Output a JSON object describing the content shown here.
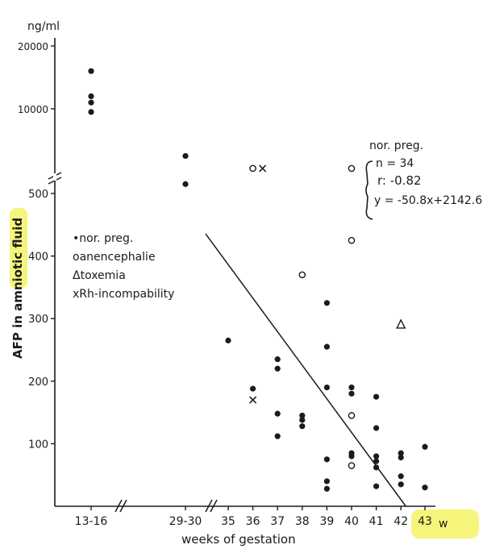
{
  "chart_data": {
    "type": "scatter",
    "ylabel": "AFP in amniotic fluid",
    "y_unit": "ng/ml",
    "xlabel": "weeks of gestation",
    "x_unit_label": "w",
    "x_ticks": [
      "13-16",
      "29-30",
      "35",
      "36",
      "37",
      "38",
      "39",
      "40",
      "41",
      "42",
      "43"
    ],
    "y_ticks_lower": [
      "100",
      "200",
      "300",
      "400",
      "500"
    ],
    "y_ticks_upper": [
      "10000",
      "20000"
    ],
    "ylim_lower": [
      0,
      500
    ],
    "ylim_upper": [
      10000,
      20000
    ],
    "grid": false,
    "legend": {
      "position": "left",
      "entries": [
        {
          "symbol": "•",
          "label": "nor. preg."
        },
        {
          "symbol": "o",
          "label": "anencephalie"
        },
        {
          "symbol": "Δ",
          "label": "toxemia"
        },
        {
          "symbol": "x",
          "label": "Rh-incompability"
        }
      ]
    },
    "stats": {
      "heading": "nor. preg.",
      "lines": [
        "n = 34",
        "r: -0.82",
        "y = -50.8x+2142.6"
      ]
    },
    "regression": {
      "slope": -50.8,
      "intercept": 2142.6,
      "x_range": [
        35,
        42.2
      ]
    },
    "series": [
      {
        "name": "nor. preg.",
        "marker": "dot",
        "points": [
          [
            "13-16",
            16000
          ],
          [
            "13-16",
            12000
          ],
          [
            "13-16",
            11000
          ],
          [
            "13-16",
            9500
          ],
          [
            "29-30",
            560
          ],
          [
            "29-30",
            515
          ],
          [
            35,
            265
          ],
          [
            36,
            188
          ],
          [
            37,
            235
          ],
          [
            37,
            220
          ],
          [
            37,
            148
          ],
          [
            37,
            112
          ],
          [
            38,
            145
          ],
          [
            38,
            138
          ],
          [
            38,
            128
          ],
          [
            39,
            325
          ],
          [
            39,
            255
          ],
          [
            39,
            190
          ],
          [
            39,
            75
          ],
          [
            39,
            40
          ],
          [
            39,
            28
          ],
          [
            40,
            190
          ],
          [
            40,
            180
          ],
          [
            40,
            85
          ],
          [
            40,
            80
          ],
          [
            40,
            65
          ],
          [
            41,
            175
          ],
          [
            41,
            125
          ],
          [
            41,
            80
          ],
          [
            41,
            72
          ],
          [
            41,
            62
          ],
          [
            41,
            32
          ],
          [
            42,
            85
          ],
          [
            42,
            78
          ],
          [
            42,
            48
          ],
          [
            42,
            35
          ],
          [
            43,
            95
          ],
          [
            43,
            30
          ]
        ]
      },
      {
        "name": "anencephalie",
        "marker": "circle",
        "points": [
          [
            36,
            540
          ],
          [
            38,
            370
          ],
          [
            40,
            540
          ],
          [
            40,
            425
          ],
          [
            40,
            145
          ],
          [
            40,
            65
          ]
        ]
      },
      {
        "name": "toxemia",
        "marker": "triangle",
        "points": [
          [
            42,
            290
          ]
        ]
      },
      {
        "name": "Rh-incompability",
        "marker": "cross",
        "points": [
          [
            36,
            540
          ],
          [
            36,
            170
          ]
        ]
      }
    ]
  }
}
